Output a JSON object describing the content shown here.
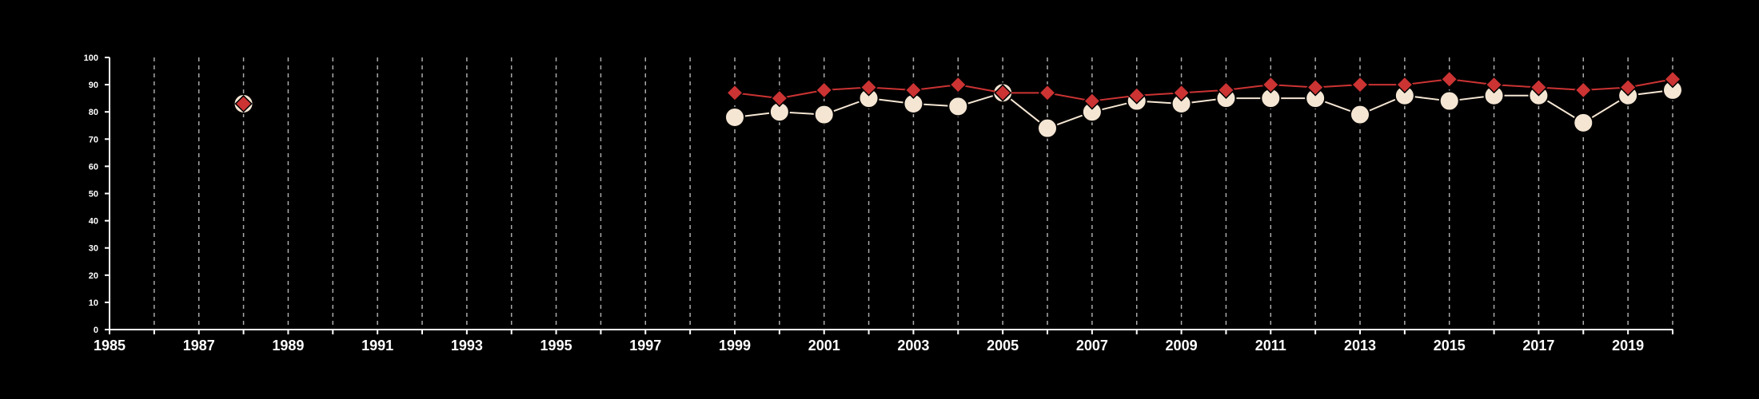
{
  "chart_data": {
    "type": "line",
    "title": "",
    "xlabel": "",
    "ylabel": "",
    "xlim": [
      1985,
      2020
    ],
    "ylim": [
      0,
      100
    ],
    "x_ticks": [
      "1985",
      "1987",
      "1989",
      "1991",
      "1993",
      "1995",
      "1997",
      "1999",
      "2001",
      "2003",
      "2005",
      "2007",
      "2009",
      "2011",
      "2013",
      "2015",
      "2017",
      "2019"
    ],
    "y_ticks": [
      "0",
      "10",
      "20",
      "30",
      "40",
      "50",
      "60",
      "70",
      "80",
      "90",
      "100"
    ],
    "grid": "vertical dashed at every year",
    "legend": "none",
    "series": [
      {
        "marker": "circle",
        "color": "#f5e6d3",
        "points": [
          [
            1988,
            83
          ],
          [
            1999,
            78
          ],
          [
            2000,
            80
          ],
          [
            2001,
            79
          ],
          [
            2002,
            85
          ],
          [
            2003,
            83
          ],
          [
            2004,
            82
          ],
          [
            2005,
            87
          ],
          [
            2006,
            74
          ],
          [
            2007,
            80
          ],
          [
            2008,
            84
          ],
          [
            2009,
            83
          ],
          [
            2010,
            85
          ],
          [
            2011,
            85
          ],
          [
            2012,
            85
          ],
          [
            2013,
            79
          ],
          [
            2014,
            86
          ],
          [
            2015,
            84
          ],
          [
            2016,
            86
          ],
          [
            2017,
            86
          ],
          [
            2018,
            76
          ],
          [
            2019,
            86
          ],
          [
            2020,
            88
          ]
        ]
      },
      {
        "marker": "diamond",
        "color": "#cc3333",
        "points": [
          [
            1988,
            83
          ],
          [
            1999,
            87
          ],
          [
            2000,
            85
          ],
          [
            2001,
            88
          ],
          [
            2002,
            89
          ],
          [
            2003,
            88
          ],
          [
            2004,
            90
          ],
          [
            2005,
            87
          ],
          [
            2006,
            87
          ],
          [
            2007,
            84
          ],
          [
            2008,
            86
          ],
          [
            2009,
            87
          ],
          [
            2010,
            88
          ],
          [
            2011,
            90
          ],
          [
            2012,
            89
          ],
          [
            2013,
            90
          ],
          [
            2014,
            90
          ],
          [
            2015,
            92
          ],
          [
            2016,
            90
          ],
          [
            2017,
            89
          ],
          [
            2018,
            88
          ],
          [
            2019,
            89
          ],
          [
            2020,
            92
          ]
        ]
      }
    ]
  }
}
